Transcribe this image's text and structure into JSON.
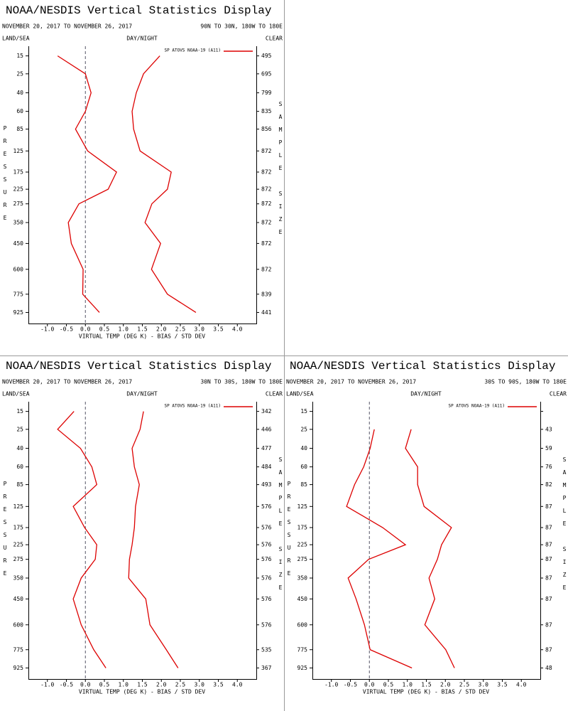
{
  "chart_data": [
    {
      "type": "line",
      "title": "NOAA/NESDIS Vertical Statistics Display",
      "subtitle": "NOVEMBER 20, 2017 TO NOVEMBER 26, 2017",
      "region": "90N TO 30N, 180W TO 180E",
      "land_sea": "LAND/SEA",
      "day_night": "DAY/NIGHT",
      "clear": "CLEAR",
      "y_label": "PRESSURE",
      "y2_label": "SAMPLE SIZE",
      "x_label": "VIRTUAL TEMP (DEG K) - BIAS / STD DEV",
      "ylim": [
        11,
        1025
      ],
      "yticks": [
        15,
        25,
        40,
        60,
        85,
        125,
        175,
        225,
        275,
        350,
        450,
        600,
        775,
        925
      ],
      "xlim": [
        -1.5,
        4.5
      ],
      "xticks": [
        {
          "value": -1,
          "label": "-1.0"
        },
        {
          "value": -0.5,
          "label": "-0.5"
        },
        {
          "value": 0,
          "label": "0.0"
        },
        {
          "value": 0.5,
          "label": "0.5"
        },
        {
          "value": 1,
          "label": "1.0"
        },
        {
          "value": 1.5,
          "label": "1.5"
        },
        {
          "value": 2,
          "label": "2.0"
        },
        {
          "value": 2.5,
          "label": "2.5"
        },
        {
          "value": 3,
          "label": "3.0"
        },
        {
          "value": 3.5,
          "label": "3.5"
        },
        {
          "value": 4,
          "label": "4.0"
        }
      ],
      "sample_size": [
        495,
        695,
        799,
        835,
        856,
        872,
        872,
        872,
        872,
        872,
        872,
        872,
        839,
        441
      ],
      "series": [
        {
          "name": "SP ATOVS NOAA-19 (A11)",
          "color": "#dd0000",
          "bias": [
            -0.73,
            0.0,
            0.15,
            0.0,
            -0.26,
            0.06,
            0.82,
            0.6,
            -0.17,
            -0.45,
            -0.37,
            -0.06,
            -0.07,
            0.37
          ],
          "std_dev": [
            1.96,
            1.53,
            1.34,
            1.23,
            1.27,
            1.44,
            2.26,
            2.16,
            1.75,
            1.57,
            1.98,
            1.74,
            2.16,
            2.91
          ]
        }
      ]
    },
    {
      "type": "line",
      "title": "NOAA/NESDIS Vertical Statistics Display",
      "subtitle": "NOVEMBER 20, 2017 TO NOVEMBER 26, 2017",
      "region": "30N TO 30S, 180W TO 180E",
      "land_sea": "LAND/SEA",
      "day_night": "DAY/NIGHT",
      "clear": "CLEAR",
      "y_label": "PRESSURE",
      "y2_label": "SAMPLE SIZE",
      "x_label": "VIRTUAL TEMP (DEG K) - BIAS / STD DEV",
      "ylim": [
        11,
        1025
      ],
      "yticks": [
        15,
        25,
        40,
        60,
        85,
        125,
        175,
        225,
        275,
        350,
        450,
        600,
        775,
        925
      ],
      "xlim": [
        -1.5,
        4.5
      ],
      "xticks": [
        {
          "value": -1,
          "label": "-1.0"
        },
        {
          "value": -0.5,
          "label": "-0.5"
        },
        {
          "value": 0,
          "label": "0.0"
        },
        {
          "value": 0.5,
          "label": "0.5"
        },
        {
          "value": 1,
          "label": "1.0"
        },
        {
          "value": 1.5,
          "label": "1.5"
        },
        {
          "value": 2,
          "label": "2.0"
        },
        {
          "value": 2.5,
          "label": "2.5"
        },
        {
          "value": 3,
          "label": "3.0"
        },
        {
          "value": 3.5,
          "label": "3.5"
        },
        {
          "value": 4,
          "label": "4.0"
        }
      ],
      "sample_size": [
        342,
        446,
        477,
        484,
        493,
        576,
        576,
        576,
        576,
        576,
        576,
        576,
        535,
        367
      ],
      "series": [
        {
          "name": "SP ATOVS NOAA-19 (A11)",
          "color": "#dd0000",
          "bias": [
            -0.3,
            -0.73,
            -0.13,
            0.17,
            0.3,
            -0.32,
            -0.02,
            0.3,
            0.26,
            -0.11,
            -0.32,
            -0.11,
            0.22,
            0.54
          ],
          "std_dev": [
            1.53,
            1.44,
            1.23,
            1.29,
            1.42,
            1.32,
            1.29,
            1.23,
            1.16,
            1.14,
            1.59,
            1.7,
            2.13,
            2.44
          ]
        }
      ]
    },
    {
      "type": "line",
      "title": "NOAA/NESDIS Vertical Statistics Display",
      "subtitle": "NOVEMBER 20, 2017 TO NOVEMBER 26, 2017",
      "region": "30S TO 90S, 180W TO 180E",
      "land_sea": "LAND/SEA",
      "day_night": "DAY/NIGHT",
      "clear": "CLEAR",
      "y_label": "PRESSURE",
      "y2_label": "SAMPLE SIZE",
      "x_label": "VIRTUAL TEMP (DEG K) - BIAS / STD DEV",
      "ylim": [
        11,
        1025
      ],
      "yticks": [
        15,
        25,
        40,
        60,
        85,
        125,
        175,
        225,
        275,
        350,
        450,
        600,
        775,
        925
      ],
      "xlim": [
        -1.5,
        4.5
      ],
      "xticks": [
        {
          "value": -1,
          "label": "-1.0"
        },
        {
          "value": -0.5,
          "label": "-0.5"
        },
        {
          "value": 0,
          "label": "0.0"
        },
        {
          "value": 0.5,
          "label": "0.5"
        },
        {
          "value": 1,
          "label": "1.0"
        },
        {
          "value": 1.5,
          "label": "1.5"
        },
        {
          "value": 2,
          "label": "2.0"
        },
        {
          "value": 2.5,
          "label": "2.5"
        },
        {
          "value": 3,
          "label": "3.0"
        },
        {
          "value": 3.5,
          "label": "3.5"
        },
        {
          "value": 4,
          "label": "4.0"
        }
      ],
      "sample_size": [
        null,
        43,
        59,
        76,
        82,
        87,
        87,
        87,
        87,
        87,
        87,
        87,
        87,
        48
      ],
      "series": [
        {
          "name": "SP ATOVS NOAA-19 (A11)",
          "color": "#dd0000",
          "bias": [
            null,
            0.13,
            0.02,
            -0.15,
            -0.39,
            -0.6,
            0.35,
            0.95,
            -0.02,
            -0.56,
            -0.35,
            -0.13,
            0.02,
            1.12
          ],
          "std_dev": [
            null,
            1.1,
            0.95,
            1.27,
            1.27,
            1.44,
            2.16,
            1.9,
            1.79,
            1.57,
            1.72,
            1.46,
            2.01,
            2.24
          ]
        }
      ]
    }
  ]
}
